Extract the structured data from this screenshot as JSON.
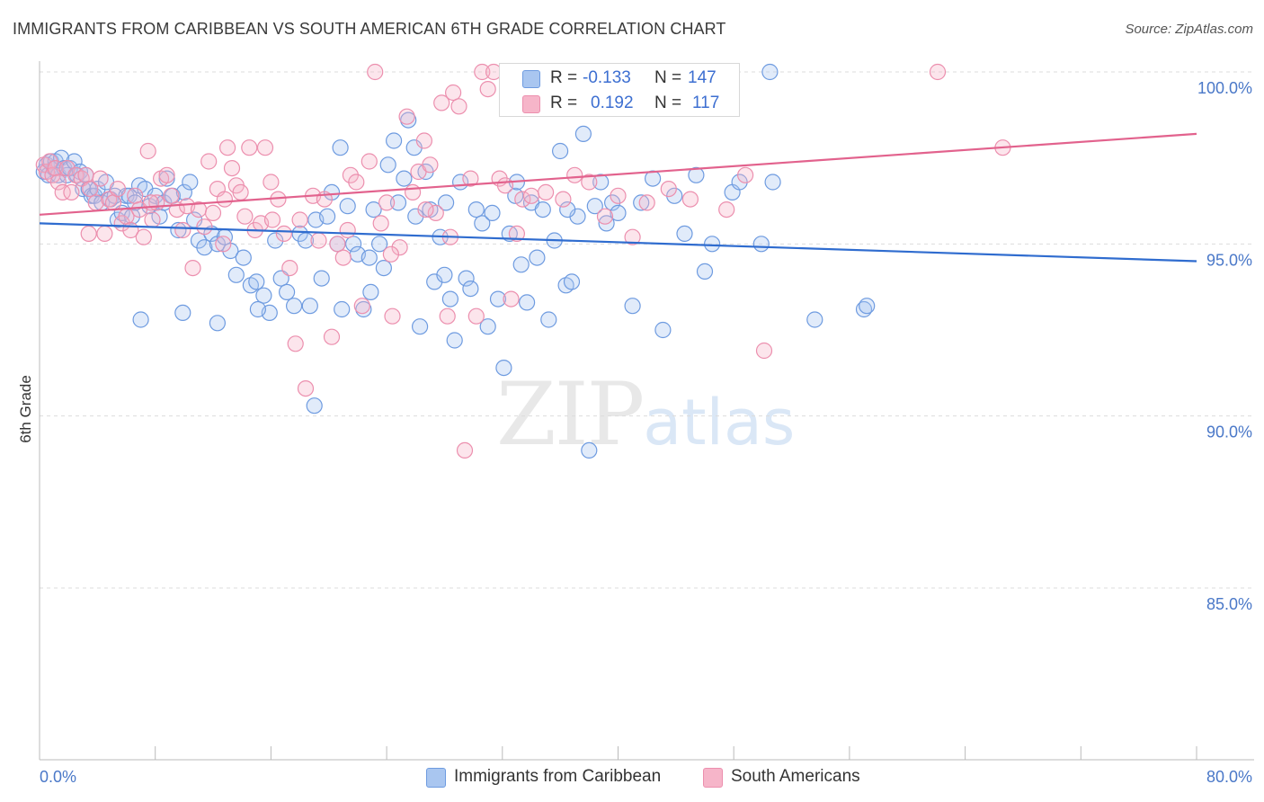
{
  "title": "IMMIGRANTS FROM CARIBBEAN VS SOUTH AMERICAN 6TH GRADE CORRELATION CHART",
  "source": "Source: ZipAtlas.com",
  "watermark": {
    "zip": "ZIP",
    "atlas": "atlas"
  },
  "stats": {
    "r_label": "R =",
    "n_label": "N =",
    "rows": [
      {
        "r": "-0.133",
        "n": "147",
        "color": "#a9c6f0"
      },
      {
        "r": "0.192",
        "n": "117",
        "color": "#f6b5c9"
      }
    ]
  },
  "legend": [
    {
      "label": "Immigrants from Caribbean",
      "color": "#a9c6f0"
    },
    {
      "label": "South Americans",
      "color": "#f6b5c9"
    }
  ],
  "chart_data": {
    "type": "scatter",
    "title": "IMMIGRANTS FROM CARIBBEAN VS SOUTH AMERICAN 6TH GRADE CORRELATION CHART",
    "xlabel": "",
    "ylabel": "6th Grade",
    "xlim": [
      0,
      80
    ],
    "ylim": [
      80.5,
      100.7
    ],
    "x_tick_labels": [
      "0.0%",
      "80.0%"
    ],
    "y_ticks": [
      {
        "value": 100,
        "label": "100.0%"
      },
      {
        "value": 95,
        "label": "95.0%"
      },
      {
        "value": 90,
        "label": "90.0%"
      },
      {
        "value": 85,
        "label": "85.0%"
      }
    ],
    "grid": true,
    "legend_position": "bottom",
    "series": [
      {
        "name": "Immigrants from Caribbean",
        "color": "#6e9be0",
        "fill": "rgba(169,198,240,0.35)",
        "line_color": "#2f6ccf",
        "trend": {
          "x": [
            0,
            80
          ],
          "y": [
            95.6,
            94.5
          ]
        },
        "points": [
          [
            0.3,
            97.1
          ],
          [
            0.5,
            97.3
          ],
          [
            0.6,
            97.0
          ],
          [
            0.8,
            97.4
          ],
          [
            1.0,
            97.2
          ],
          [
            1.1,
            97.4
          ],
          [
            1.3,
            97.0
          ],
          [
            1.5,
            97.5
          ],
          [
            1.7,
            97.2
          ],
          [
            1.9,
            97.0
          ],
          [
            2.1,
            97.2
          ],
          [
            2.4,
            97.4
          ],
          [
            2.6,
            97.0
          ],
          [
            2.8,
            97.1
          ],
          [
            3.0,
            96.6
          ],
          [
            3.2,
            97.0
          ],
          [
            3.4,
            96.6
          ],
          [
            3.6,
            96.4
          ],
          [
            3.8,
            96.4
          ],
          [
            4.0,
            96.6
          ],
          [
            4.3,
            96.2
          ],
          [
            4.6,
            96.8
          ],
          [
            4.9,
            96.3
          ],
          [
            5.2,
            96.4
          ],
          [
            5.4,
            95.7
          ],
          [
            5.7,
            95.9
          ],
          [
            6.0,
            96.4
          ],
          [
            6.2,
            96.4
          ],
          [
            6.4,
            95.8
          ],
          [
            6.6,
            96.2
          ],
          [
            6.9,
            96.7
          ],
          [
            7.3,
            96.6
          ],
          [
            7.6,
            96.1
          ],
          [
            8.0,
            96.4
          ],
          [
            8.3,
            95.8
          ],
          [
            8.6,
            96.2
          ],
          [
            8.8,
            96.9
          ],
          [
            9.2,
            96.4
          ],
          [
            9.6,
            95.4
          ],
          [
            10.0,
            96.5
          ],
          [
            10.4,
            96.8
          ],
          [
            10.7,
            95.7
          ],
          [
            11.0,
            95.1
          ],
          [
            11.4,
            94.9
          ],
          [
            11.9,
            95.3
          ],
          [
            12.3,
            95.0
          ],
          [
            12.8,
            95.2
          ],
          [
            13.2,
            94.8
          ],
          [
            13.6,
            94.1
          ],
          [
            14.1,
            94.6
          ],
          [
            14.6,
            93.8
          ],
          [
            15.0,
            93.9
          ],
          [
            15.5,
            93.5
          ],
          [
            15.9,
            93.0
          ],
          [
            16.3,
            95.1
          ],
          [
            16.7,
            94.0
          ],
          [
            17.1,
            93.6
          ],
          [
            17.6,
            93.2
          ],
          [
            18.0,
            95.3
          ],
          [
            18.4,
            95.1
          ],
          [
            18.7,
            93.2
          ],
          [
            19.1,
            95.7
          ],
          [
            19.5,
            94.0
          ],
          [
            19.9,
            95.8
          ],
          [
            20.2,
            96.5
          ],
          [
            20.6,
            95.0
          ],
          [
            20.9,
            93.1
          ],
          [
            21.3,
            96.1
          ],
          [
            21.7,
            95.0
          ],
          [
            22.0,
            94.7
          ],
          [
            22.4,
            93.1
          ],
          [
            22.8,
            94.6
          ],
          [
            23.1,
            96.0
          ],
          [
            23.5,
            95.0
          ],
          [
            23.8,
            94.3
          ],
          [
            24.1,
            97.3
          ],
          [
            24.5,
            98.0
          ],
          [
            24.8,
            96.2
          ],
          [
            25.2,
            96.9
          ],
          [
            25.5,
            98.6
          ],
          [
            25.9,
            97.8
          ],
          [
            26.3,
            92.6
          ],
          [
            26.7,
            97.1
          ],
          [
            27.0,
            96.0
          ],
          [
            27.3,
            93.9
          ],
          [
            27.7,
            95.2
          ],
          [
            28.0,
            94.1
          ],
          [
            28.4,
            93.4
          ],
          [
            28.7,
            92.2
          ],
          [
            29.1,
            96.8
          ],
          [
            29.5,
            94.0
          ],
          [
            29.8,
            93.7
          ],
          [
            30.2,
            96.0
          ],
          [
            30.6,
            95.6
          ],
          [
            31.0,
            92.6
          ],
          [
            31.3,
            95.9
          ],
          [
            31.7,
            93.4
          ],
          [
            32.1,
            91.4
          ],
          [
            32.5,
            95.3
          ],
          [
            32.9,
            96.4
          ],
          [
            33.3,
            94.4
          ],
          [
            33.7,
            93.3
          ],
          [
            34.0,
            96.2
          ],
          [
            34.4,
            94.6
          ],
          [
            34.8,
            96.0
          ],
          [
            35.2,
            92.8
          ],
          [
            35.6,
            95.1
          ],
          [
            36.0,
            97.7
          ],
          [
            36.4,
            93.8
          ],
          [
            36.8,
            93.9
          ],
          [
            37.2,
            95.8
          ],
          [
            37.6,
            98.2
          ],
          [
            38.0,
            89.0
          ],
          [
            38.4,
            96.1
          ],
          [
            38.8,
            96.8
          ],
          [
            39.2,
            95.6
          ],
          [
            39.6,
            96.2
          ],
          [
            40.0,
            95.9
          ],
          [
            41.0,
            93.2
          ],
          [
            41.6,
            96.2
          ],
          [
            42.4,
            96.9
          ],
          [
            43.1,
            92.5
          ],
          [
            43.9,
            96.4
          ],
          [
            44.6,
            95.3
          ],
          [
            45.4,
            97.0
          ],
          [
            46.0,
            94.2
          ],
          [
            46.5,
            95.0
          ],
          [
            47.9,
            96.5
          ],
          [
            48.4,
            96.8
          ],
          [
            49.9,
            95.0
          ],
          [
            50.7,
            96.8
          ],
          [
            53.6,
            92.8
          ],
          [
            57.0,
            93.1
          ],
          [
            57.2,
            93.2
          ],
          [
            19.0,
            90.3
          ],
          [
            45.5,
            100.0
          ],
          [
            50.5,
            100.0
          ],
          [
            20.8,
            97.8
          ],
          [
            26.0,
            95.8
          ],
          [
            28.1,
            96.2
          ],
          [
            33.0,
            96.8
          ],
          [
            36.5,
            96.0
          ],
          [
            7.0,
            92.8
          ],
          [
            9.9,
            93.0
          ],
          [
            12.3,
            92.7
          ],
          [
            15.1,
            93.1
          ],
          [
            22.9,
            93.6
          ]
        ]
      },
      {
        "name": "South Americans",
        "color": "#ec8fae",
        "fill": "rgba(246,181,201,0.35)",
        "line_color": "#e2628d",
        "trend": {
          "x": [
            0,
            80
          ],
          "y": [
            95.85,
            98.2
          ]
        },
        "points": [
          [
            0.3,
            97.3
          ],
          [
            0.5,
            97.1
          ],
          [
            0.7,
            97.4
          ],
          [
            0.9,
            97.0
          ],
          [
            1.1,
            97.2
          ],
          [
            1.3,
            96.8
          ],
          [
            1.6,
            96.5
          ],
          [
            1.9,
            97.2
          ],
          [
            2.2,
            96.5
          ],
          [
            2.5,
            97.0
          ],
          [
            2.9,
            96.9
          ],
          [
            3.2,
            97.0
          ],
          [
            3.5,
            96.6
          ],
          [
            3.9,
            96.2
          ],
          [
            4.2,
            96.9
          ],
          [
            4.5,
            95.3
          ],
          [
            4.8,
            96.3
          ],
          [
            5.1,
            96.2
          ],
          [
            5.4,
            96.6
          ],
          [
            5.7,
            95.6
          ],
          [
            6.0,
            95.8
          ],
          [
            6.3,
            95.4
          ],
          [
            6.6,
            96.4
          ],
          [
            6.9,
            96.0
          ],
          [
            7.2,
            95.2
          ],
          [
            7.5,
            97.7
          ],
          [
            7.8,
            95.7
          ],
          [
            8.1,
            96.2
          ],
          [
            8.4,
            96.9
          ],
          [
            8.8,
            97.0
          ],
          [
            9.1,
            96.4
          ],
          [
            9.5,
            96.0
          ],
          [
            9.9,
            95.4
          ],
          [
            10.2,
            96.1
          ],
          [
            10.6,
            94.3
          ],
          [
            11.0,
            96.0
          ],
          [
            11.4,
            95.5
          ],
          [
            11.7,
            97.4
          ],
          [
            12.0,
            95.9
          ],
          [
            12.3,
            96.6
          ],
          [
            12.7,
            95.0
          ],
          [
            13.0,
            97.8
          ],
          [
            13.3,
            97.2
          ],
          [
            13.6,
            96.7
          ],
          [
            13.9,
            96.5
          ],
          [
            14.2,
            95.8
          ],
          [
            14.5,
            97.8
          ],
          [
            14.9,
            95.4
          ],
          [
            15.3,
            95.6
          ],
          [
            15.6,
            97.8
          ],
          [
            16.0,
            96.8
          ],
          [
            16.5,
            96.3
          ],
          [
            16.9,
            95.3
          ],
          [
            17.3,
            94.3
          ],
          [
            17.7,
            92.1
          ],
          [
            18.0,
            95.7
          ],
          [
            18.4,
            90.8
          ],
          [
            18.9,
            96.4
          ],
          [
            19.3,
            95.1
          ],
          [
            19.7,
            96.3
          ],
          [
            20.2,
            92.3
          ],
          [
            20.6,
            95.0
          ],
          [
            21.0,
            94.6
          ],
          [
            21.5,
            97.0
          ],
          [
            21.9,
            96.8
          ],
          [
            22.3,
            93.2
          ],
          [
            22.8,
            97.4
          ],
          [
            23.2,
            100.0
          ],
          [
            23.6,
            95.6
          ],
          [
            24.0,
            96.2
          ],
          [
            24.4,
            92.9
          ],
          [
            24.9,
            94.9
          ],
          [
            25.4,
            98.7
          ],
          [
            25.8,
            96.5
          ],
          [
            26.2,
            97.1
          ],
          [
            26.6,
            98.0
          ],
          [
            27.0,
            97.3
          ],
          [
            27.4,
            95.9
          ],
          [
            27.8,
            99.1
          ],
          [
            28.2,
            92.9
          ],
          [
            28.6,
            99.4
          ],
          [
            29.0,
            99.0
          ],
          [
            29.4,
            89.0
          ],
          [
            29.8,
            96.9
          ],
          [
            30.2,
            92.9
          ],
          [
            30.6,
            100.0
          ],
          [
            31.0,
            99.5
          ],
          [
            31.4,
            100.0
          ],
          [
            31.8,
            96.9
          ],
          [
            32.2,
            96.7
          ],
          [
            32.6,
            93.4
          ],
          [
            33.0,
            95.3
          ],
          [
            33.4,
            96.3
          ],
          [
            34.0,
            96.4
          ],
          [
            35.0,
            96.5
          ],
          [
            36.2,
            96.3
          ],
          [
            37.0,
            97.0
          ],
          [
            38.0,
            96.8
          ],
          [
            39.1,
            95.8
          ],
          [
            40.0,
            96.4
          ],
          [
            41.0,
            95.2
          ],
          [
            42.0,
            96.2
          ],
          [
            43.5,
            96.6
          ],
          [
            45.0,
            96.3
          ],
          [
            47.5,
            96.0
          ],
          [
            48.8,
            97.0
          ],
          [
            50.1,
            91.9
          ],
          [
            62.1,
            100.0
          ],
          [
            66.6,
            97.8
          ],
          [
            3.4,
            95.3
          ],
          [
            7.7,
            96.2
          ],
          [
            12.8,
            96.3
          ],
          [
            16.1,
            95.7
          ],
          [
            21.3,
            95.4
          ],
          [
            24.3,
            94.7
          ],
          [
            26.7,
            96.0
          ],
          [
            28.4,
            95.2
          ]
        ]
      }
    ]
  }
}
